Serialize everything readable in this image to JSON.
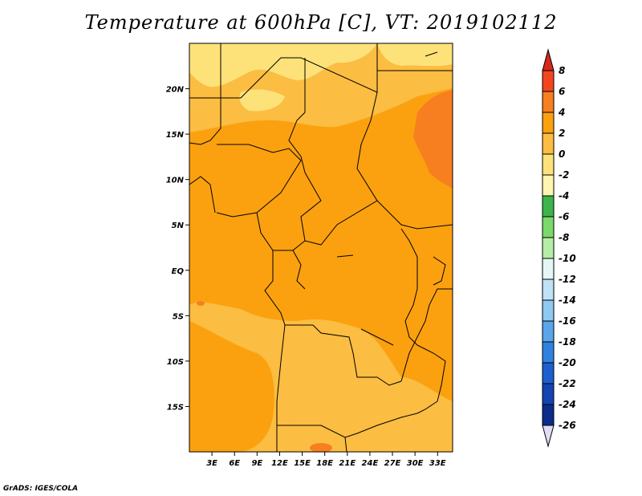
{
  "title": "Temperature at 600hPa [C], VT: 2019102112",
  "credit": "GrADS: IGES/COLA",
  "map": {
    "lon_range": [
      0,
      35
    ],
    "lat_range": [
      -20,
      25
    ],
    "lon_ticks": [
      {
        "value": 3,
        "label": "3E"
      },
      {
        "value": 6,
        "label": "6E"
      },
      {
        "value": 9,
        "label": "9E"
      },
      {
        "value": 12,
        "label": "12E"
      },
      {
        "value": 15,
        "label": "15E"
      },
      {
        "value": 18,
        "label": "18E"
      },
      {
        "value": 21,
        "label": "21E"
      },
      {
        "value": 24,
        "label": "24E"
      },
      {
        "value": 27,
        "label": "27E"
      },
      {
        "value": 30,
        "label": "30E"
      },
      {
        "value": 33,
        "label": "33E"
      }
    ],
    "lat_ticks": [
      {
        "value": 20,
        "label": "20N"
      },
      {
        "value": 15,
        "label": "15N"
      },
      {
        "value": 10,
        "label": "10N"
      },
      {
        "value": 5,
        "label": "5N"
      },
      {
        "value": 0,
        "label": "EQ"
      },
      {
        "value": -5,
        "label": "5S"
      },
      {
        "value": -10,
        "label": "10S"
      },
      {
        "value": -15,
        "label": "15S"
      }
    ],
    "background_fill_class": "0 to 2",
    "colors": {
      "above_8": "#d7281c",
      "6_to_8": "#f2461e",
      "4_to_6": "#f77f1f",
      "2_to_4": "#fba10f",
      "0_to_2": "#fbbd42",
      "minus2_to_0": "#fde27a",
      "border": "#000000"
    }
  },
  "colorbar": {
    "levels": [
      "8",
      "6",
      "4",
      "2",
      "0",
      "-2",
      "-4",
      "-6",
      "-8",
      "-10",
      "-12",
      "-14",
      "-16",
      "-18",
      "-20",
      "-22",
      "-24",
      "-26"
    ],
    "colors": [
      "#d7281c",
      "#f2461e",
      "#f77f1f",
      "#fba10f",
      "#fbbd42",
      "#fde27a",
      "#fef6b0",
      "#3cb54a",
      "#7bd96c",
      "#b6eda6",
      "#e4f7f4",
      "#bfe2f7",
      "#8ec9f2",
      "#5aa5eb",
      "#2f83e0",
      "#1d5fcf",
      "#1444b3",
      "#0b2c8a",
      "#081463"
    ],
    "arrow_bottom_color": "#e0ddf5"
  }
}
